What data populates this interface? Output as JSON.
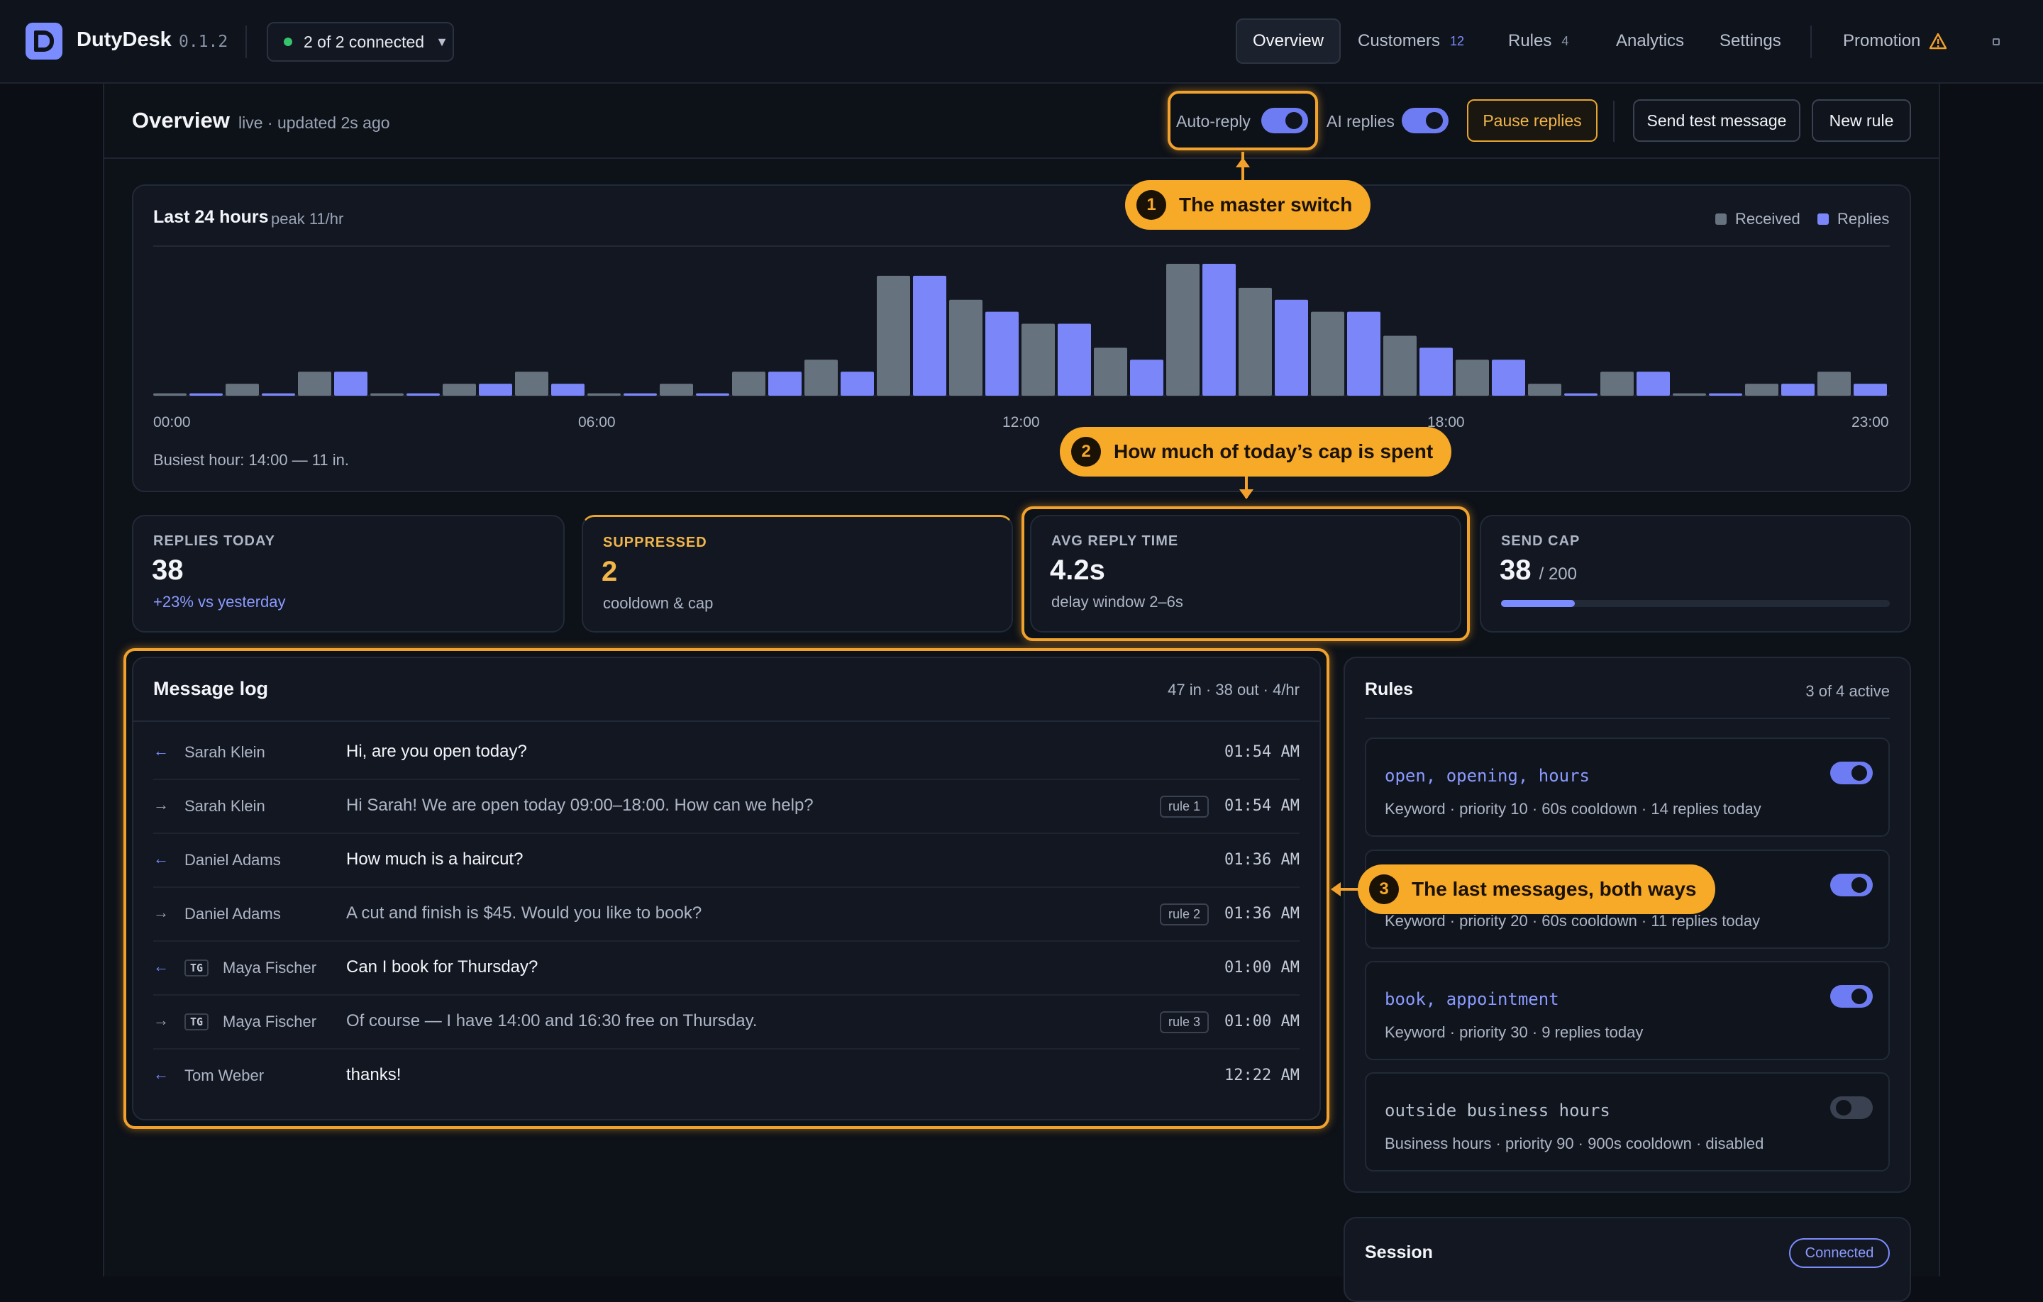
{
  "app": {
    "name": "DutyDesk",
    "version": "0.1.2",
    "connection": "2 of 2 connected"
  },
  "nav": {
    "overview": "Overview",
    "customers": "Customers",
    "customers_badge": "12",
    "rules": "Rules",
    "rules_badge": "4",
    "analytics": "Analytics",
    "settings": "Settings",
    "promotion": "Promotion"
  },
  "header": {
    "title": "Overview",
    "subtitle": "live · updated 2s ago",
    "auto_reply_label": "Auto-reply",
    "auto_reply_on": true,
    "ai_replies_label": "AI replies",
    "ai_replies_on": true,
    "pause_label": "Pause replies",
    "send_test_label": "Send test message",
    "new_rule_label": "New rule"
  },
  "chart_data": {
    "type": "bar",
    "title": "Last 24 hours",
    "subtitle": "peak 11/hr",
    "categories": [
      "00:00",
      "01:00",
      "02:00",
      "03:00",
      "04:00",
      "05:00",
      "06:00",
      "07:00",
      "08:00",
      "09:00",
      "10:00",
      "11:00",
      "12:00",
      "13:00",
      "14:00",
      "15:00",
      "16:00",
      "17:00",
      "18:00",
      "19:00",
      "20:00",
      "21:00",
      "22:00",
      "23:00"
    ],
    "x_tick_labels": [
      "00:00",
      "06:00",
      "12:00",
      "18:00",
      "23:00"
    ],
    "series": [
      {
        "name": "Received",
        "color": "#66727e",
        "values": [
          0.2,
          1,
          2,
          0.2,
          1,
          2,
          0.2,
          1,
          2,
          3,
          10,
          8,
          6,
          4,
          11,
          9,
          7,
          5,
          3,
          1,
          2,
          0.2,
          1,
          2
        ]
      },
      {
        "name": "Replies",
        "color": "#7b86f9",
        "values": [
          0.2,
          0.2,
          2,
          0.2,
          1,
          1,
          0.2,
          0.2,
          2,
          2,
          10,
          7,
          6,
          3,
          11,
          8,
          7,
          4,
          3,
          0.2,
          2,
          0.2,
          1,
          1
        ]
      }
    ],
    "ylim": [
      0,
      11
    ],
    "legend": "top-right",
    "grid": false,
    "footer": "Busiest hour: 14:00 — 11 in."
  },
  "stats": {
    "replies_today": {
      "label": "REPLIES TODAY",
      "value": "38",
      "sub": "+23% vs yesterday"
    },
    "suppressed": {
      "label": "SUPPRESSED",
      "value": "2",
      "sub": "cooldown & cap"
    },
    "avg_reply": {
      "label": "AVG REPLY TIME",
      "value": "4.2s",
      "sub": "delay window 2–6s"
    },
    "send_cap": {
      "label": "SEND CAP",
      "value": "38",
      "unit": "/ 200",
      "used": 38,
      "max": 200
    }
  },
  "message_log": {
    "title": "Message log",
    "meta": "47 in · 38 out · 4/hr",
    "rows": [
      {
        "dir": "in",
        "tg": "",
        "name": "Sarah Klein",
        "text": "Hi, are you open today?",
        "rule": "",
        "time": "01:54 AM"
      },
      {
        "dir": "out",
        "tg": "",
        "name": "Sarah Klein",
        "text": "Hi Sarah! We are open today 09:00–18:00. How can we help?",
        "rule": "rule 1",
        "time": "01:54 AM"
      },
      {
        "dir": "in",
        "tg": "",
        "name": "Daniel Adams",
        "text": "How much is a haircut?",
        "rule": "",
        "time": "01:36 AM"
      },
      {
        "dir": "out",
        "tg": "",
        "name": "Daniel Adams",
        "text": "A cut and finish is $45. Would you like to book?",
        "rule": "rule 2",
        "time": "01:36 AM"
      },
      {
        "dir": "in",
        "tg": "TG",
        "name": "Maya Fischer",
        "text": "Can I book for Thursday?",
        "rule": "",
        "time": "01:00 AM"
      },
      {
        "dir": "out",
        "tg": "TG",
        "name": "Maya Fischer",
        "text": "Of course — I have 14:00 and 16:30 free on Thursday.",
        "rule": "rule 3",
        "time": "01:00 AM"
      },
      {
        "dir": "in",
        "tg": "",
        "name": "Tom Weber",
        "text": "thanks!",
        "rule": "",
        "time": "12:22 AM"
      }
    ]
  },
  "rules_panel": {
    "title": "Rules",
    "meta": "3 of 4 active",
    "rules": [
      {
        "keywords": "open, opening, hours",
        "desc": "Keyword · priority 10 · 60s cooldown · 14 replies today",
        "enabled": true
      },
      {
        "keywords": "",
        "desc": "Keyword · priority 20 · 60s cooldown · 11 replies today",
        "enabled": true
      },
      {
        "keywords": "book, appointment",
        "desc": "Keyword · priority 30 · 9 replies today",
        "enabled": true
      },
      {
        "keywords": "outside business hours",
        "desc": "Business hours · priority 90 · 900s cooldown · disabled",
        "enabled": false
      }
    ]
  },
  "session": {
    "title": "Session",
    "status": "Connected"
  },
  "annotations": {
    "c1": {
      "num": "1",
      "text": "The master switch"
    },
    "c2": {
      "num": "2",
      "text": "How much of today’s cap is spent"
    },
    "c3": {
      "num": "3",
      "text": "The last messages, both ways"
    }
  },
  "colors": {
    "accent": "#7b8cff",
    "highlight": "#f2a22c",
    "suppressed": "#f2b64a",
    "success": "#35c46b"
  }
}
